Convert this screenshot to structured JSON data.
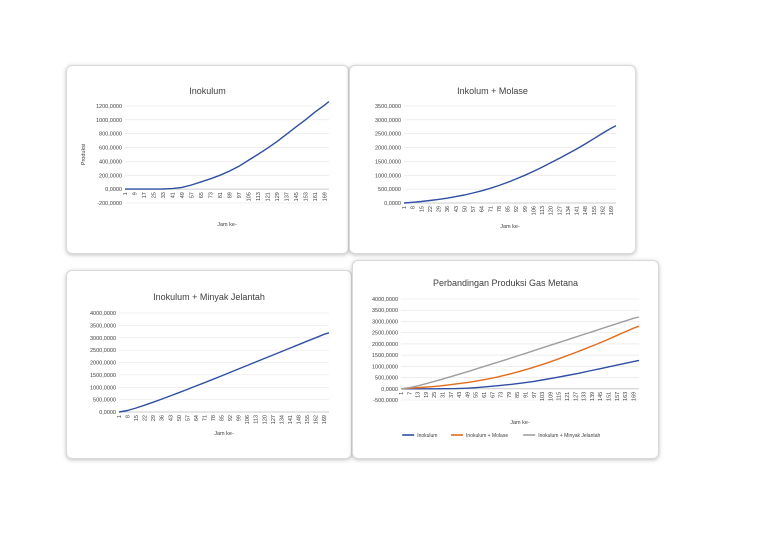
{
  "chart_data": [
    {
      "type": "line",
      "title": "Inokulum",
      "xlabel": "Jam ke-",
      "ylabel": "Produksi",
      "ylim": [
        -200,
        1200
      ],
      "yticks": [
        "-200,0000",
        "0,0000",
        "200,0000",
        "400,0000",
        "600,0000",
        "800,0000",
        "1000,0000",
        "1200,0000"
      ],
      "xticks": [
        "1",
        "9",
        "17",
        "25",
        "33",
        "41",
        "49",
        "57",
        "65",
        "73",
        "81",
        "89",
        "97",
        "105",
        "113",
        "121",
        "129",
        "137",
        "145",
        "153",
        "161",
        "169"
      ],
      "series": [
        {
          "x": [
            1,
            9,
            17,
            25,
            33,
            41,
            49,
            57,
            65,
            73,
            81,
            89,
            97,
            105,
            113,
            121,
            129,
            137,
            145,
            153,
            161,
            169,
            173
          ],
          "values": [
            0,
            0,
            0,
            0,
            2,
            8,
            25,
            60,
            105,
            150,
            200,
            260,
            330,
            415,
            500,
            590,
            685,
            790,
            895,
            1000,
            1110,
            1210,
            1265
          ],
          "color": "#2f4fa2"
        }
      ]
    },
    {
      "type": "line",
      "title": "Inkolum + Molase",
      "xlabel": "Jam ke-",
      "ylabel": "",
      "ylim": [
        0,
        3500
      ],
      "yticks": [
        "0,0000",
        "500,0000",
        "1000,0000",
        "1500,0000",
        "2000,0000",
        "2500,0000",
        "3000,0000",
        "3500,0000"
      ],
      "xticks": [
        "1",
        "8",
        "15",
        "22",
        "29",
        "36",
        "43",
        "50",
        "57",
        "64",
        "71",
        "78",
        "85",
        "92",
        "99",
        "106",
        "113",
        "120",
        "127",
        "134",
        "141",
        "148",
        "155",
        "162",
        "169"
      ],
      "series": [
        {
          "x": [
            1,
            8,
            15,
            22,
            29,
            36,
            43,
            50,
            57,
            64,
            71,
            78,
            85,
            92,
            99,
            106,
            113,
            120,
            127,
            134,
            141,
            148,
            155,
            162,
            169,
            173
          ],
          "values": [
            0,
            25,
            55,
            90,
            130,
            175,
            230,
            290,
            360,
            440,
            530,
            630,
            745,
            870,
            1000,
            1140,
            1290,
            1450,
            1610,
            1780,
            1950,
            2130,
            2320,
            2510,
            2700,
            2790
          ],
          "color": "#2f4fa2"
        }
      ]
    },
    {
      "type": "line",
      "title": "Inokulum + Minyak Jelantah",
      "xlabel": "Jam ke-",
      "ylabel": "",
      "ylim": [
        0,
        4000
      ],
      "yticks": [
        "0,0000",
        "500,0000",
        "1000,0000",
        "1500,0000",
        "2000,0000",
        "2500,0000",
        "3000,0000",
        "3500,0000",
        "4000,0000"
      ],
      "xticks": [
        "1",
        "8",
        "15",
        "22",
        "29",
        "36",
        "43",
        "50",
        "57",
        "64",
        "71",
        "78",
        "85",
        "92",
        "99",
        "106",
        "113",
        "120",
        "127",
        "134",
        "141",
        "148",
        "155",
        "162",
        "169"
      ],
      "series": [
        {
          "x": [
            1,
            8,
            15,
            22,
            29,
            36,
            43,
            50,
            57,
            64,
            71,
            78,
            85,
            92,
            99,
            106,
            113,
            120,
            127,
            134,
            141,
            148,
            155,
            162,
            169,
            173
          ],
          "values": [
            0,
            60,
            160,
            275,
            395,
            520,
            650,
            780,
            915,
            1050,
            1185,
            1320,
            1460,
            1600,
            1740,
            1880,
            2020,
            2160,
            2300,
            2440,
            2580,
            2720,
            2860,
            3000,
            3140,
            3200
          ],
          "color": "#2f4fa2"
        }
      ]
    },
    {
      "type": "line",
      "title": "Perbandingan Produksi Gas Metana",
      "xlabel": "Jam ke-",
      "ylabel": "",
      "ylim": [
        -500,
        4000
      ],
      "yticks": [
        "-500,0000",
        "0,0000",
        "500,0000",
        "1000,0000",
        "1500,0000",
        "2000,0000",
        "2500,0000",
        "3000,0000",
        "3500,0000",
        "4000,0000"
      ],
      "xticks": [
        "1",
        "7",
        "13",
        "19",
        "25",
        "31",
        "37",
        "43",
        "49",
        "55",
        "61",
        "67",
        "73",
        "79",
        "85",
        "91",
        "97",
        "103",
        "109",
        "115",
        "121",
        "127",
        "133",
        "139",
        "145",
        "151",
        "157",
        "163",
        "169"
      ],
      "series": [
        {
          "name": "Inokulum",
          "x": [
            1,
            9,
            17,
            25,
            33,
            41,
            49,
            57,
            65,
            73,
            81,
            89,
            97,
            105,
            113,
            121,
            129,
            137,
            145,
            153,
            161,
            169,
            173
          ],
          "values": [
            0,
            0,
            0,
            0,
            2,
            8,
            25,
            60,
            105,
            150,
            200,
            260,
            330,
            415,
            500,
            590,
            685,
            790,
            895,
            1000,
            1110,
            1210,
            1265
          ],
          "color": "#2f4fa2"
        },
        {
          "name": "Inokulum + Molase",
          "x": [
            1,
            8,
            15,
            22,
            29,
            36,
            43,
            50,
            57,
            64,
            71,
            78,
            85,
            92,
            99,
            106,
            113,
            120,
            127,
            134,
            141,
            148,
            155,
            162,
            169,
            173
          ],
          "values": [
            0,
            25,
            55,
            90,
            130,
            175,
            230,
            290,
            360,
            440,
            530,
            630,
            745,
            870,
            1000,
            1140,
            1290,
            1450,
            1610,
            1780,
            1950,
            2130,
            2320,
            2510,
            2700,
            2790
          ],
          "color": "#e36c1c"
        },
        {
          "name": "Inokulum + Minyak Jelantah",
          "x": [
            1,
            8,
            15,
            22,
            29,
            36,
            43,
            50,
            57,
            64,
            71,
            78,
            85,
            92,
            99,
            106,
            113,
            120,
            127,
            134,
            141,
            148,
            155,
            162,
            169,
            173
          ],
          "values": [
            0,
            60,
            160,
            275,
            395,
            520,
            650,
            780,
            915,
            1050,
            1185,
            1320,
            1460,
            1600,
            1740,
            1880,
            2020,
            2160,
            2300,
            2440,
            2580,
            2720,
            2860,
            3000,
            3140,
            3200
          ],
          "color": "#9e9e9e"
        }
      ],
      "legend": "bottom"
    }
  ]
}
